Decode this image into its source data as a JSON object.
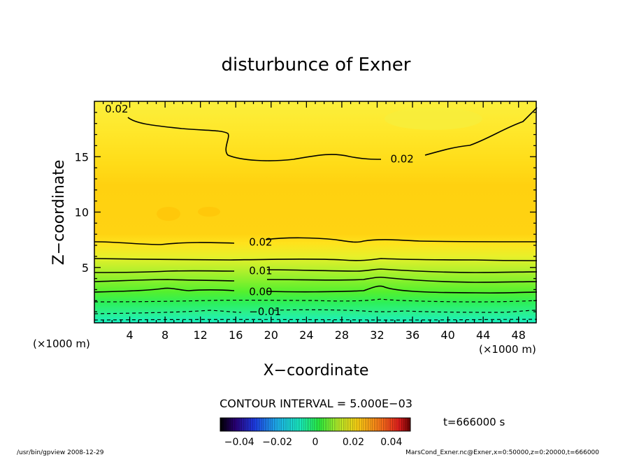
{
  "chart_data": {
    "type": "contour",
    "title": "disturbunce of Exner",
    "xlabel": "X−coordinate",
    "ylabel": "Z−coordinate",
    "x_unit_left": "(×1000 m)",
    "x_unit_right": "(×1000 m)",
    "xlim": [
      0,
      50
    ],
    "ylim": [
      0,
      20
    ],
    "x_ticks": [
      4,
      8,
      12,
      16,
      20,
      24,
      28,
      32,
      36,
      40,
      44,
      48
    ],
    "y_ticks": [
      5,
      10,
      15
    ],
    "contour_interval_text": "CONTOUR INTERVAL = 5.000E−03",
    "contour_labels": [
      {
        "text": "0.02",
        "x": 1.2,
        "z": 19.3
      },
      {
        "text": "0.02",
        "x": 33.5,
        "z": 14.8
      },
      {
        "text": "0.02",
        "x": 17.5,
        "z": 7.3
      },
      {
        "text": "0.01",
        "x": 17.5,
        "z": 4.7
      },
      {
        "text": "0.00",
        "x": 17.5,
        "z": 2.8
      },
      {
        "text": "−0.01",
        "x": 17.5,
        "z": 1.0
      }
    ],
    "colorbar": {
      "range": [
        -0.05,
        0.05
      ],
      "tick_values": [
        -0.04,
        -0.02,
        0,
        0.02,
        0.04
      ],
      "tick_labels": [
        "−0.04",
        "−0.02",
        "0",
        "0.02",
        "0.04"
      ]
    },
    "time_label": "t=666000 s",
    "footer_left": "/usr/bin/gpview   2008-12-29",
    "footer_right": "MarsCond_Exner.nc@Exner,x=0:50000,z=0:20000,t=666000"
  }
}
